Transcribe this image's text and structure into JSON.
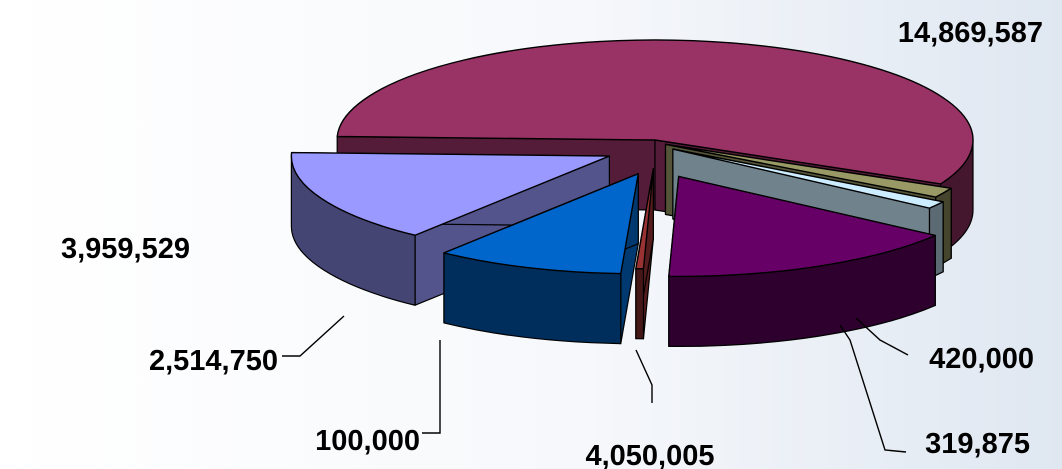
{
  "chart_data": {
    "type": "pie",
    "style": "3d-exploded",
    "title": "",
    "legend": "none",
    "slices": [
      {
        "value": 14869587,
        "label": "14,869,587",
        "color": "#993366"
      },
      {
        "value": 420000,
        "label": "420,000",
        "color": "#999966"
      },
      {
        "value": 319875,
        "label": "319,875",
        "color": "#CCECFF"
      },
      {
        "value": 4050005,
        "label": "4,050,005",
        "color": "#660066"
      },
      {
        "value": 100000,
        "label": "100,000",
        "color": "#993333"
      },
      {
        "value": 2514750,
        "label": "2,514,750",
        "color": "#0066CC"
      },
      {
        "value": 3959529,
        "label": "3,959,529",
        "color": "#9999FF"
      }
    ]
  }
}
